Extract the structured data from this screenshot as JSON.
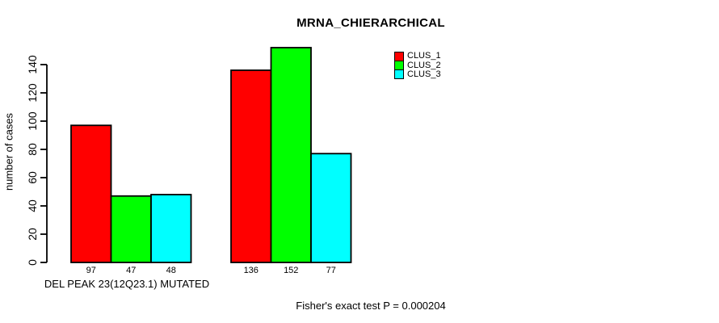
{
  "title": "MRNA_CHIERARCHICAL",
  "ylabel": "number of cases",
  "xlabel": "DEL PEAK 23(12Q23.1) MUTATED",
  "footnote": "Fisher's exact test P = 0.000204",
  "colors": {
    "clus_1": "#FF0000",
    "clus_2": "#00FF00",
    "clus_3": "#00FFFF",
    "axis": "#000000",
    "background": "#FFFFFF"
  },
  "legend": {
    "entries": [
      {
        "label": "CLUS_1",
        "color": "#FF0000"
      },
      {
        "label": "CLUS_2",
        "color": "#00FF00"
      },
      {
        "label": "CLUS_3",
        "color": "#00FFFF"
      }
    ],
    "position": "top-right-of-plot"
  },
  "chart_data": {
    "type": "bar",
    "title": "MRNA_CHIERARCHICAL",
    "xlabel": "DEL PEAK 23(12Q23.1) MUTATED",
    "ylabel": "number of cases",
    "groups": 2,
    "series": [
      {
        "name": "CLUS_1",
        "color": "#FF0000",
        "values": [
          97,
          136
        ]
      },
      {
        "name": "CLUS_2",
        "color": "#00FF00",
        "values": [
          47,
          152
        ]
      },
      {
        "name": "CLUS_3",
        "color": "#00FFFF",
        "values": [
          48,
          77
        ]
      }
    ],
    "bar_value_labels": [
      [
        97,
        47,
        48
      ],
      [
        136,
        152,
        77
      ]
    ],
    "yticks": [
      0,
      20,
      40,
      60,
      80,
      100,
      120,
      140
    ],
    "ylim": [
      0,
      140
    ],
    "grid": false,
    "bar_outline": "#000000",
    "annotations": [
      "Fisher's exact test P = 0.000204"
    ]
  }
}
